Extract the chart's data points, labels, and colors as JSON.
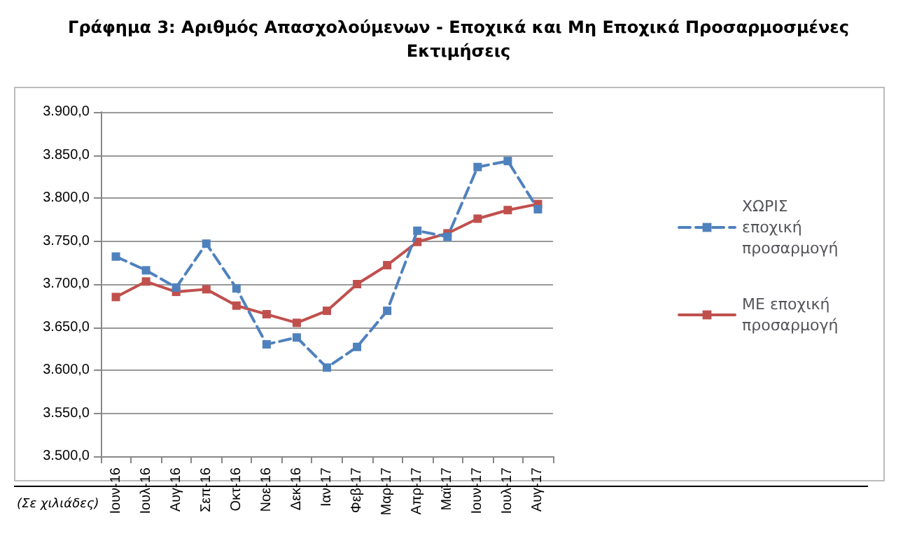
{
  "chart_data": {
    "type": "line",
    "title": "Γράφημα 3: Αριθμός Απασχολούμενων - Εποχικά και Μη Εποχικά Προσαρμοσμένες\nΕκτιμήσεις",
    "categories": [
      "Ιουν-16",
      "Ιουλ-16",
      "Αυγ-16",
      "Σεπ-16",
      "Οκτ-16",
      "Νοε-16",
      "Δεκ-16",
      "Ιαν-17",
      "Φεβ-17",
      "Μαρ-17",
      "Απρ-17",
      "Μαϊ-17",
      "Ιουν-17",
      "Ιουλ-17",
      "Αυγ-17"
    ],
    "series": [
      {
        "name": "ΧΩΡΙΣ εποχική προσαρμογή",
        "color": "#4f81bd",
        "line_style": "dashed",
        "marker": "square",
        "values": [
          3732,
          3716,
          3696,
          3747,
          3695,
          3630,
          3638,
          3603,
          3627,
          3669,
          3762,
          3755,
          3836,
          3843,
          3787
        ]
      },
      {
        "name": "ΜΕ εποχική προσαρμογή",
        "color": "#c0504d",
        "line_style": "solid",
        "marker": "square",
        "values": [
          3685,
          3703,
          3691,
          3694,
          3675,
          3665,
          3655,
          3669,
          3700,
          3722,
          3749,
          3759,
          3776,
          3786,
          3793
        ]
      }
    ],
    "ylim": [
      3500,
      3900
    ],
    "yticks": [
      {
        "value": 3500,
        "label": "3.500,0"
      },
      {
        "value": 3550,
        "label": "3.550,0"
      },
      {
        "value": 3600,
        "label": "3.600,0"
      },
      {
        "value": 3650,
        "label": "3.650,0"
      },
      {
        "value": 3700,
        "label": "3.700,0"
      },
      {
        "value": 3750,
        "label": "3.750,0"
      },
      {
        "value": 3800,
        "label": "3.800,0"
      },
      {
        "value": 3850,
        "label": "3.850,0"
      },
      {
        "value": 3900,
        "label": "3.900,0"
      }
    ],
    "grid": "y",
    "legend": "right",
    "annotations": [
      "(Σε χιλιάδες)"
    ]
  }
}
